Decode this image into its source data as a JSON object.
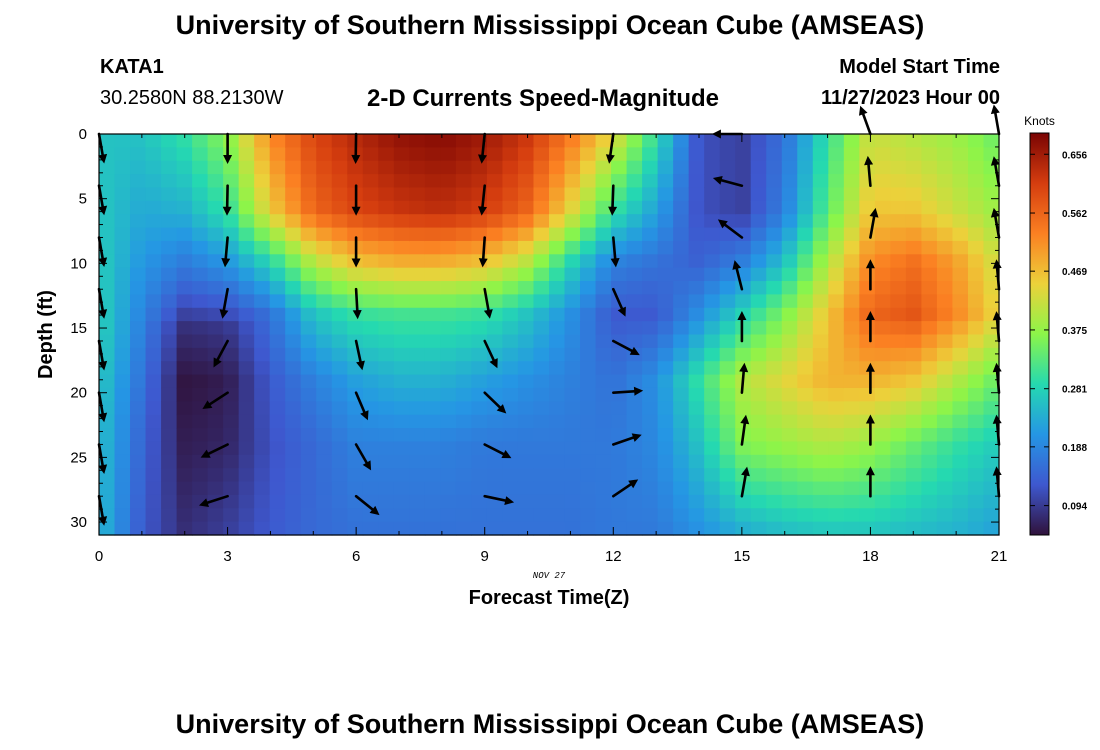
{
  "header": {
    "title": "University of Southern Mississippi Ocean Cube (AMSEAS)",
    "station_id": "KATA1",
    "station_coords": "30.2580N  88.2130W",
    "subtitle": "2-D Currents Speed-Magnitude",
    "model_start_label": "Model Start Time",
    "model_start_value": "11/27/2023 Hour 00"
  },
  "footer": {
    "title": "University of Southern Mississippi Ocean Cube (AMSEAS)"
  },
  "chart_data": {
    "type": "heatmap",
    "title": "2-D Currents Speed-Magnitude",
    "xlabel": "Forecast Time(Z)",
    "ylabel": "Depth (ft)",
    "date_label": "NOV 27",
    "xlim": [
      0,
      21
    ],
    "ylim": [
      0,
      31
    ],
    "x_ticks": [
      0,
      3,
      6,
      9,
      12,
      15,
      18,
      21
    ],
    "y_ticks": [
      0,
      5,
      10,
      15,
      20,
      25,
      30
    ],
    "colorbar": {
      "unit_label": "Knots",
      "min": 0.047,
      "max": 0.69,
      "ticks": [
        "0.656",
        "0.562",
        "0.469",
        "0.375",
        "0.281",
        "0.188",
        "0.094"
      ],
      "colors": [
        "#30123b",
        "#3e58cf",
        "#2596e4",
        "#25d9b0",
        "#8cf549",
        "#ecd13a",
        "#fb8022",
        "#d53d0f",
        "#7a0403"
      ]
    },
    "speed_profiles": [
      {
        "hour": 0,
        "depths": [
          0,
          8,
          15,
          22,
          31
        ],
        "speeds": [
          0.26,
          0.27,
          0.28,
          0.26,
          0.25
        ]
      },
      {
        "hour": 1,
        "depths": [
          0,
          8,
          15,
          22,
          31
        ],
        "speeds": [
          0.26,
          0.22,
          0.18,
          0.15,
          0.13
        ]
      },
      {
        "hour": 2,
        "depths": [
          0,
          6,
          12,
          15,
          19,
          24,
          31
        ],
        "speeds": [
          0.3,
          0.24,
          0.14,
          0.08,
          0.05,
          0.06,
          0.08
        ]
      },
      {
        "hour": 3,
        "depths": [
          0,
          6,
          12,
          15,
          19,
          24,
          31
        ],
        "speeds": [
          0.37,
          0.3,
          0.16,
          0.09,
          0.06,
          0.07,
          0.1
        ]
      },
      {
        "hour": 4,
        "depths": [
          0,
          6,
          10,
          14,
          19,
          24,
          31
        ],
        "speeds": [
          0.52,
          0.45,
          0.28,
          0.16,
          0.13,
          0.12,
          0.13
        ]
      },
      {
        "hour": 5,
        "depths": [
          0,
          6,
          10,
          14,
          19,
          24,
          31
        ],
        "speeds": [
          0.6,
          0.56,
          0.4,
          0.26,
          0.18,
          0.15,
          0.15
        ]
      },
      {
        "hour": 6,
        "depths": [
          0,
          6,
          10,
          14,
          19,
          24,
          31
        ],
        "speeds": [
          0.64,
          0.6,
          0.46,
          0.3,
          0.22,
          0.18,
          0.16
        ]
      },
      {
        "hour": 7,
        "depths": [
          0,
          6,
          10,
          14,
          19,
          24,
          31
        ],
        "speeds": [
          0.67,
          0.62,
          0.48,
          0.31,
          0.24,
          0.18,
          0.16
        ]
      },
      {
        "hour": 8,
        "depths": [
          0,
          6,
          10,
          14,
          19,
          24,
          31
        ],
        "speeds": [
          0.68,
          0.63,
          0.48,
          0.31,
          0.24,
          0.18,
          0.16
        ]
      },
      {
        "hour": 9,
        "depths": [
          0,
          6,
          10,
          14,
          19,
          24,
          31
        ],
        "speeds": [
          0.66,
          0.61,
          0.46,
          0.3,
          0.22,
          0.17,
          0.16
        ]
      },
      {
        "hour": 10,
        "depths": [
          0,
          6,
          10,
          14,
          19,
          24,
          31
        ],
        "speeds": [
          0.62,
          0.56,
          0.4,
          0.26,
          0.2,
          0.17,
          0.16
        ]
      },
      {
        "hour": 11,
        "depths": [
          0,
          6,
          10,
          14,
          19,
          24,
          31
        ],
        "speeds": [
          0.54,
          0.44,
          0.28,
          0.2,
          0.18,
          0.17,
          0.16
        ]
      },
      {
        "hour": 12,
        "depths": [
          0,
          6,
          10,
          14,
          19,
          24,
          31
        ],
        "speeds": [
          0.44,
          0.3,
          0.18,
          0.13,
          0.16,
          0.17,
          0.17
        ]
      },
      {
        "hour": 13,
        "depths": [
          0,
          6,
          10,
          14,
          19,
          24,
          31
        ],
        "speeds": [
          0.3,
          0.22,
          0.16,
          0.13,
          0.2,
          0.19,
          0.17
        ]
      },
      {
        "hour": 14,
        "depths": [
          0,
          6,
          10,
          14,
          19,
          24,
          31
        ],
        "speeds": [
          0.12,
          0.12,
          0.14,
          0.2,
          0.3,
          0.26,
          0.2
        ]
      },
      {
        "hour": 15,
        "depths": [
          0,
          6,
          10,
          14,
          19,
          24,
          31
        ],
        "speeds": [
          0.1,
          0.1,
          0.18,
          0.28,
          0.4,
          0.36,
          0.23
        ]
      },
      {
        "hour": 16,
        "depths": [
          0,
          6,
          10,
          14,
          19,
          24,
          31
        ],
        "speeds": [
          0.16,
          0.18,
          0.26,
          0.36,
          0.44,
          0.38,
          0.25
        ]
      },
      {
        "hour": 17,
        "depths": [
          0,
          6,
          10,
          14,
          19,
          24,
          31
        ],
        "speeds": [
          0.3,
          0.33,
          0.4,
          0.46,
          0.48,
          0.4,
          0.26
        ]
      },
      {
        "hour": 18,
        "depths": [
          0,
          6,
          10,
          14,
          19,
          24,
          31
        ],
        "speeds": [
          0.42,
          0.46,
          0.52,
          0.56,
          0.48,
          0.38,
          0.26
        ]
      },
      {
        "hour": 19,
        "depths": [
          0,
          6,
          10,
          14,
          19,
          24,
          31
        ],
        "speeds": [
          0.4,
          0.46,
          0.55,
          0.58,
          0.46,
          0.34,
          0.25
        ]
      },
      {
        "hour": 20,
        "depths": [
          0,
          6,
          10,
          14,
          19,
          24,
          31
        ],
        "speeds": [
          0.38,
          0.42,
          0.5,
          0.52,
          0.4,
          0.3,
          0.24
        ]
      },
      {
        "hour": 21,
        "depths": [
          0,
          6,
          10,
          14,
          19,
          24,
          31
        ],
        "speeds": [
          0.34,
          0.38,
          0.42,
          0.44,
          0.34,
          0.27,
          0.22
        ]
      }
    ],
    "arrow_depths": [
      0,
      4,
      8,
      12,
      16,
      20,
      24,
      28
    ],
    "current_vectors": [
      {
        "hour": 0,
        "directions_deg": [
          170,
          170,
          170,
          170,
          170,
          170,
          170,
          170
        ]
      },
      {
        "hour": 3,
        "directions_deg": [
          180,
          181,
          185,
          190,
          208,
          237,
          244,
          252
        ]
      },
      {
        "hour": 6,
        "directions_deg": [
          181,
          180,
          180,
          177,
          168,
          157,
          150,
          129
        ]
      },
      {
        "hour": 9,
        "directions_deg": [
          186,
          186,
          184,
          170,
          155,
          134,
          117,
          102
        ]
      },
      {
        "hour": 12,
        "directions_deg": [
          188,
          182,
          175,
          156,
          118,
          86,
          71,
          56
        ]
      },
      {
        "hour": 15,
        "directions_deg": [
          270,
          285,
          307,
          346,
          0,
          5,
          8,
          10
        ]
      },
      {
        "hour": 18,
        "directions_deg": [
          340,
          355,
          10,
          0,
          0,
          0,
          0,
          0
        ]
      },
      {
        "hour": 21,
        "directions_deg": [
          350,
          350,
          350,
          355,
          355,
          355,
          355,
          355
        ]
      }
    ]
  }
}
